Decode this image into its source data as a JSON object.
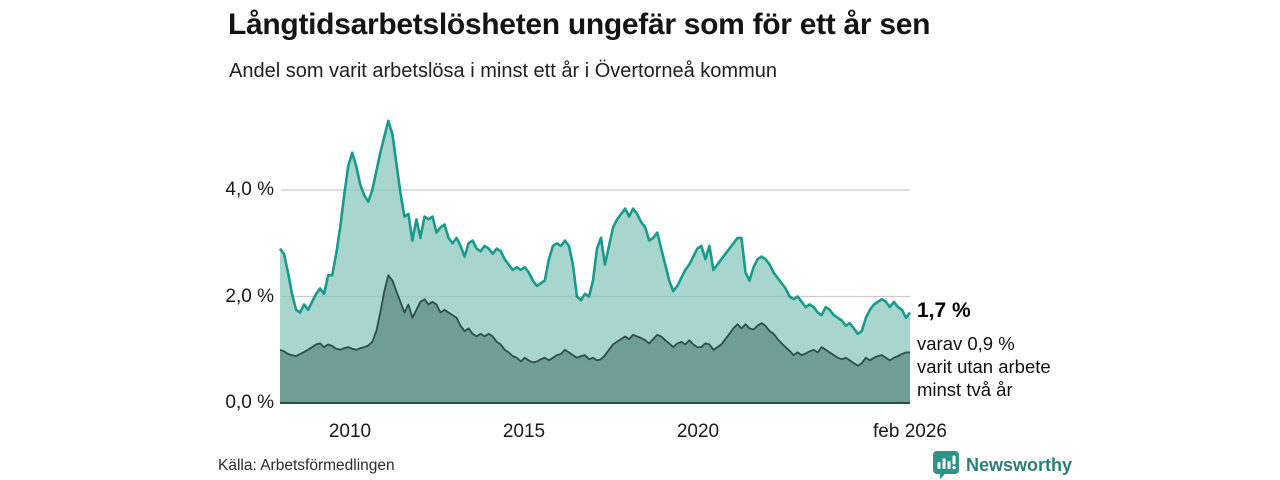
{
  "title": "Långtidsarbetslösheten ungefär som för ett år sen",
  "subtitle": "Andel som varit arbetslösa i minst ett år i Övertorneå kommun",
  "source": "Källa: Arbetsförmedlingen",
  "brand": {
    "name": "Newsworthy",
    "logo_color": "#2f9488",
    "text_color": "#2c7e76"
  },
  "annotation": {
    "value": "1,7 %",
    "lines": [
      "varav 0,9 %",
      "varit utan arbete",
      "minst två år"
    ]
  },
  "chart_data": {
    "type": "area",
    "title": "Långtidsarbetslösheten ungefär som för ett år sen",
    "subtitle": "Andel som varit arbetslösa i minst ett år i Övertorneå kommun",
    "unit": "%",
    "x_start": 2008.0,
    "x_end": 2026.08,
    "x_ticks": [
      {
        "year": 2010,
        "label": "2010"
      },
      {
        "year": 2015,
        "label": "2015"
      },
      {
        "year": 2020,
        "label": "2020"
      },
      {
        "year": 2026.08,
        "label": "feb 2026"
      }
    ],
    "y_ticks": [
      {
        "value": 0,
        "label": "0,0 %"
      },
      {
        "value": 2,
        "label": "2,0 %"
      },
      {
        "value": 4,
        "label": "4,0 %"
      }
    ],
    "ylim": [
      0,
      5.5
    ],
    "grid": true,
    "legend_position": "none",
    "series": [
      {
        "name": "minst ett år",
        "latest_label": "1,7 %",
        "stroke": "#189a8c",
        "fill": "#a8d6cf",
        "values": [
          2.9,
          2.8,
          2.45,
          2.05,
          1.75,
          1.7,
          1.85,
          1.75,
          1.9,
          2.05,
          2.15,
          2.05,
          2.4,
          2.4,
          2.8,
          3.3,
          3.9,
          4.45,
          4.7,
          4.45,
          4.1,
          3.9,
          3.78,
          4.0,
          4.35,
          4.7,
          5.0,
          5.3,
          5.05,
          4.5,
          3.95,
          3.5,
          3.55,
          3.05,
          3.45,
          3.1,
          3.5,
          3.45,
          3.5,
          3.2,
          3.3,
          3.35,
          3.1,
          3.0,
          3.1,
          2.95,
          2.75,
          3.0,
          3.05,
          2.9,
          2.85,
          2.95,
          2.9,
          2.8,
          2.9,
          2.85,
          2.7,
          2.6,
          2.5,
          2.55,
          2.5,
          2.55,
          2.45,
          2.3,
          2.2,
          2.25,
          2.3,
          2.7,
          2.95,
          3.0,
          2.95,
          3.05,
          2.95,
          2.6,
          2.0,
          1.93,
          2.05,
          2.0,
          2.3,
          2.9,
          3.1,
          2.6,
          2.95,
          3.3,
          3.45,
          3.55,
          3.65,
          3.5,
          3.65,
          3.55,
          3.4,
          3.3,
          3.05,
          3.1,
          3.2,
          2.9,
          2.6,
          2.3,
          2.1,
          2.2,
          2.35,
          2.5,
          2.6,
          2.75,
          2.9,
          2.95,
          2.7,
          2.95,
          2.5,
          2.6,
          2.7,
          2.8,
          2.9,
          3.0,
          3.1,
          3.1,
          2.45,
          2.3,
          2.55,
          2.7,
          2.75,
          2.7,
          2.6,
          2.45,
          2.35,
          2.25,
          2.15,
          2.0,
          1.95,
          2.0,
          1.9,
          1.8,
          1.85,
          1.8,
          1.7,
          1.65,
          1.8,
          1.75,
          1.65,
          1.6,
          1.55,
          1.45,
          1.5,
          1.4,
          1.3,
          1.35,
          1.6,
          1.75,
          1.85,
          1.9,
          1.95,
          1.9,
          1.8,
          1.9,
          1.8,
          1.75,
          1.6,
          1.7
        ]
      },
      {
        "name": "minst två år",
        "latest_label": "0,9 %",
        "stroke": "#2e4d48",
        "fill": "#6f9e96",
        "values": [
          1.0,
          0.97,
          0.92,
          0.9,
          0.88,
          0.92,
          0.96,
          1.0,
          1.05,
          1.1,
          1.12,
          1.05,
          1.1,
          1.07,
          1.02,
          1.0,
          1.03,
          1.05,
          1.02,
          1.0,
          1.03,
          1.05,
          1.08,
          1.15,
          1.35,
          1.7,
          2.1,
          2.4,
          2.3,
          2.1,
          1.9,
          1.7,
          1.85,
          1.6,
          1.75,
          1.9,
          1.95,
          1.85,
          1.9,
          1.85,
          1.7,
          1.75,
          1.7,
          1.65,
          1.6,
          1.45,
          1.35,
          1.4,
          1.3,
          1.25,
          1.3,
          1.25,
          1.3,
          1.25,
          1.15,
          1.1,
          1.0,
          0.95,
          0.88,
          0.85,
          0.78,
          0.85,
          0.8,
          0.76,
          0.78,
          0.82,
          0.85,
          0.8,
          0.85,
          0.9,
          0.92,
          1.0,
          0.95,
          0.9,
          0.85,
          0.88,
          0.9,
          0.82,
          0.85,
          0.8,
          0.82,
          0.9,
          1.0,
          1.1,
          1.15,
          1.2,
          1.25,
          1.2,
          1.28,
          1.25,
          1.22,
          1.18,
          1.12,
          1.2,
          1.28,
          1.25,
          1.18,
          1.12,
          1.05,
          1.12,
          1.15,
          1.1,
          1.18,
          1.1,
          1.05,
          1.05,
          1.12,
          1.1,
          1.0,
          1.05,
          1.1,
          1.2,
          1.3,
          1.4,
          1.48,
          1.4,
          1.48,
          1.4,
          1.38,
          1.45,
          1.5,
          1.45,
          1.35,
          1.3,
          1.2,
          1.12,
          1.05,
          0.98,
          0.9,
          0.95,
          0.9,
          0.93,
          0.97,
          1.0,
          0.95,
          1.05,
          1.0,
          0.95,
          0.9,
          0.85,
          0.82,
          0.85,
          0.8,
          0.75,
          0.7,
          0.75,
          0.85,
          0.8,
          0.85,
          0.88,
          0.9,
          0.85,
          0.8,
          0.85,
          0.88,
          0.92,
          0.95,
          0.95
        ]
      }
    ]
  }
}
